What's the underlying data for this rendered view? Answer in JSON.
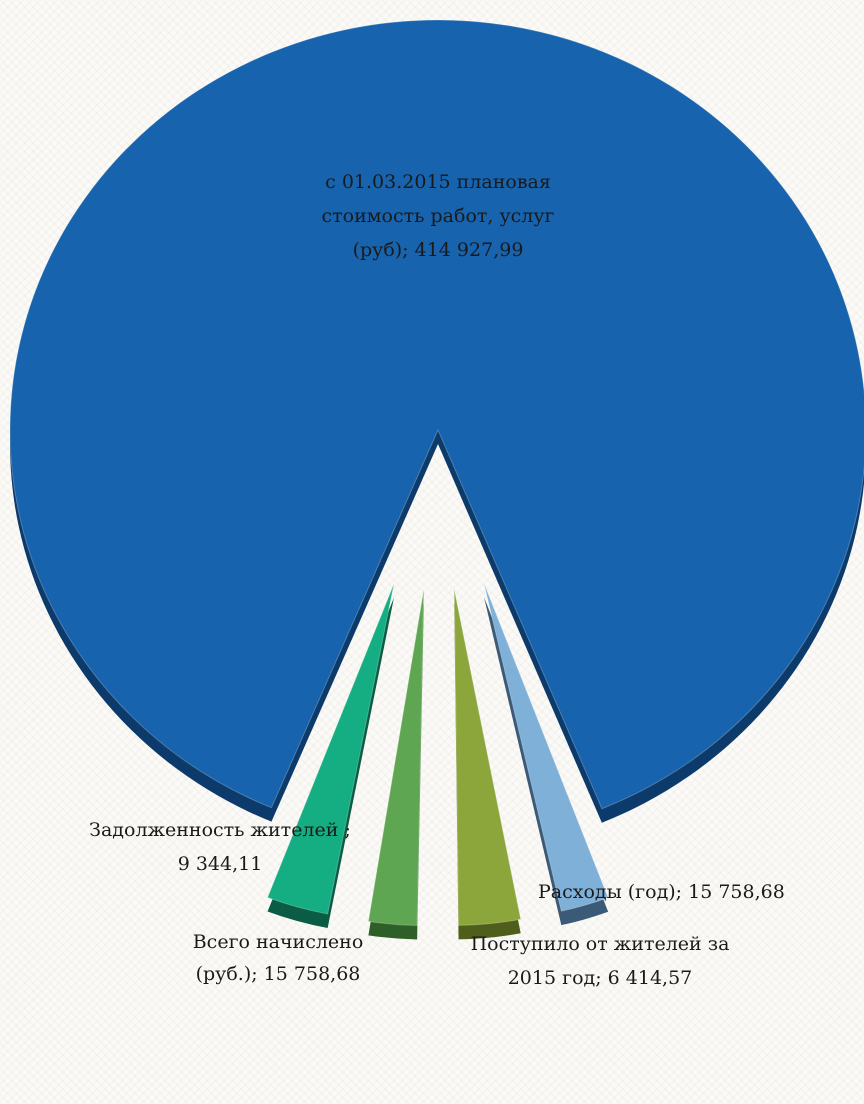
{
  "chart_data": {
    "type": "pie",
    "style": "exploded 3d",
    "slices": [
      {
        "label": "с 01.03.2015  плановая стоимость работ, услуг (руб)",
        "value_text": "414 927,99",
        "value": 414927.99,
        "color": "#1763ad",
        "side": "#0b3a6b"
      },
      {
        "label": "Задолженность жителей ",
        "value_text": "9 344,11",
        "value": 9344.11,
        "color": "#7fb0d8",
        "side": "#3a5a78"
      },
      {
        "label": "Всего начислено (руб.)",
        "value_text": "15 758,68",
        "value": 15758.68,
        "color": "#8ca63c",
        "side": "#4f5f1b"
      },
      {
        "label": "Поступило от жителей за 2015 год",
        "value_text": "6 414,57",
        "value": 6414.57,
        "color": "#5fa653",
        "side": "#2f5f28"
      },
      {
        "label": "Расходы (год)",
        "value_text": "15 758,68",
        "value": 15758.68,
        "color": "#15ad82",
        "side": "#0a5c44"
      }
    ],
    "labels": [
      {
        "lines": [
          "с 01.03.2015  плановая",
          "стоимость работ, услуг",
          "(руб); 414 927,99"
        ]
      },
      {
        "lines": [
          "Задолженность жителей ;",
          "9 344,11"
        ]
      },
      {
        "lines": [
          "Всего начислено",
          "(руб.); 15 758,68"
        ]
      },
      {
        "lines": [
          "Поступило от жителей за",
          "2015 год; 6 414,57"
        ]
      },
      {
        "lines": [
          "Расходы (год); 15 758,68"
        ]
      }
    ]
  }
}
